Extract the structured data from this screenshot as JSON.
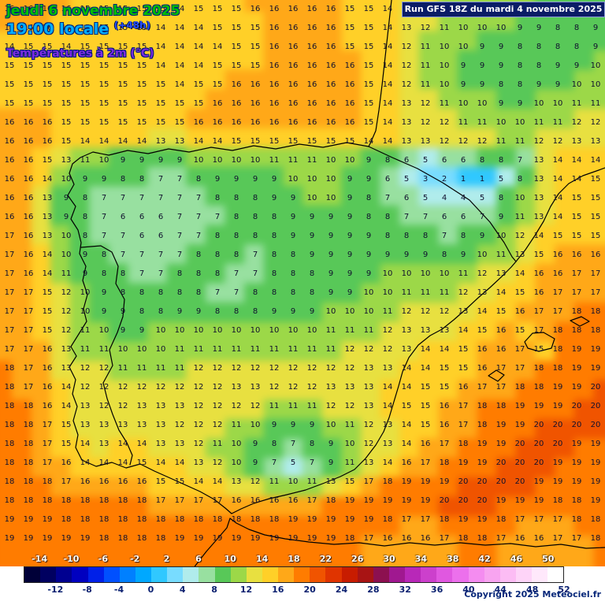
{
  "header": {
    "date_line": "jeudi 6 novembre 2025",
    "time_line": "19:00 locale",
    "offset": "(+48h)",
    "param_line": "Températures à 2m (°C)"
  },
  "banner": {
    "text": "Run GFS 18Z du mardi 4 novembre 2025"
  },
  "footer": {
    "copyright": "Copyright 2025 Meteociel.fr"
  },
  "colorbar": {
    "range": [
      -16,
      52
    ],
    "top_labels": [
      -14,
      -10,
      -6,
      -2,
      2,
      6,
      10,
      14,
      18,
      22,
      26,
      30,
      34,
      38,
      42,
      46,
      50
    ],
    "bottom_labels": [
      -12,
      -8,
      -4,
      0,
      4,
      8,
      12,
      16,
      20,
      24,
      28,
      32,
      36,
      40,
      44,
      48,
      52
    ],
    "stops": [
      {
        "max": -14,
        "color": "#000038"
      },
      {
        "max": -12,
        "color": "#000060"
      },
      {
        "max": -10,
        "color": "#000090"
      },
      {
        "max": -8,
        "color": "#0000C0"
      },
      {
        "max": -6,
        "color": "#0020E8"
      },
      {
        "max": -4,
        "color": "#0050FF"
      },
      {
        "max": -2,
        "color": "#0080FF"
      },
      {
        "max": 0,
        "color": "#00A8FF"
      },
      {
        "max": 2,
        "color": "#30C8FF"
      },
      {
        "max": 4,
        "color": "#78DCFF"
      },
      {
        "max": 6,
        "color": "#B0ECEC"
      },
      {
        "max": 8,
        "color": "#98E0A0"
      },
      {
        "max": 10,
        "color": "#58C858"
      },
      {
        "max": 12,
        "color": "#9CD848"
      },
      {
        "max": 14,
        "color": "#E8E040"
      },
      {
        "max": 16,
        "color": "#FFD028"
      },
      {
        "max": 18,
        "color": "#FFA818"
      },
      {
        "max": 20,
        "color": "#FF7C00"
      },
      {
        "max": 22,
        "color": "#F05400"
      },
      {
        "max": 24,
        "color": "#E03400"
      },
      {
        "max": 26,
        "color": "#C81C00"
      },
      {
        "max": 28,
        "color": "#A81414"
      },
      {
        "max": 30,
        "color": "#8C1050"
      },
      {
        "max": 32,
        "color": "#A01890"
      },
      {
        "max": 34,
        "color": "#B828B8"
      },
      {
        "max": 36,
        "color": "#CC40CC"
      },
      {
        "max": 38,
        "color": "#E058E0"
      },
      {
        "max": 40,
        "color": "#EC70EC"
      },
      {
        "max": 42,
        "color": "#F48CF0"
      },
      {
        "max": 44,
        "color": "#F8A4F0"
      },
      {
        "max": 46,
        "color": "#FCBCF4"
      },
      {
        "max": 48,
        "color": "#FED4F8"
      },
      {
        "max": 50,
        "color": "#FFE8FB"
      },
      {
        "max": 52,
        "color": "#FFFFFF"
      }
    ]
  },
  "grid": {
    "cols": 32,
    "rows": 30,
    "cell": 24,
    "values": [
      [
        16,
        16,
        16,
        16,
        15,
        15,
        15,
        15,
        15,
        14,
        15,
        15,
        15,
        16,
        16,
        16,
        16,
        16,
        15,
        15,
        14,
        13,
        12,
        11,
        11,
        10,
        10,
        10,
        9,
        9,
        8,
        9
      ],
      [
        16,
        16,
        16,
        15,
        15,
        15,
        15,
        15,
        14,
        14,
        14,
        15,
        15,
        15,
        16,
        16,
        16,
        16,
        15,
        15,
        14,
        13,
        12,
        11,
        10,
        10,
        10,
        9,
        9,
        8,
        8,
        9
      ],
      [
        14,
        15,
        15,
        14,
        15,
        15,
        15,
        15,
        14,
        14,
        14,
        14,
        15,
        15,
        16,
        16,
        16,
        16,
        15,
        15,
        14,
        12,
        11,
        10,
        10,
        9,
        9,
        8,
        8,
        8,
        8,
        9
      ],
      [
        15,
        15,
        15,
        15,
        15,
        15,
        15,
        15,
        14,
        14,
        14,
        15,
        15,
        15,
        16,
        16,
        16,
        16,
        16,
        15,
        14,
        12,
        11,
        10,
        9,
        9,
        9,
        8,
        8,
        9,
        9,
        10
      ],
      [
        15,
        15,
        15,
        15,
        15,
        15,
        15,
        15,
        15,
        14,
        15,
        15,
        16,
        16,
        16,
        16,
        16,
        16,
        16,
        15,
        14,
        12,
        11,
        10,
        9,
        9,
        8,
        8,
        9,
        9,
        10,
        10
      ],
      [
        15,
        15,
        15,
        15,
        15,
        15,
        15,
        15,
        15,
        15,
        15,
        16,
        16,
        16,
        16,
        16,
        16,
        16,
        16,
        15,
        14,
        13,
        12,
        11,
        10,
        10,
        9,
        9,
        10,
        10,
        11,
        11
      ],
      [
        16,
        16,
        16,
        15,
        15,
        15,
        15,
        15,
        15,
        15,
        16,
        16,
        16,
        16,
        16,
        16,
        16,
        16,
        16,
        15,
        14,
        13,
        12,
        12,
        11,
        11,
        10,
        10,
        11,
        11,
        12,
        12
      ],
      [
        16,
        16,
        16,
        15,
        14,
        14,
        14,
        14,
        13,
        13,
        14,
        14,
        15,
        15,
        15,
        15,
        15,
        15,
        15,
        14,
        14,
        13,
        13,
        12,
        12,
        12,
        11,
        11,
        12,
        12,
        13,
        13
      ],
      [
        16,
        16,
        15,
        13,
        11,
        10,
        9,
        9,
        9,
        9,
        10,
        10,
        10,
        10,
        11,
        11,
        11,
        10,
        10,
        9,
        8,
        6,
        5,
        6,
        6,
        8,
        8,
        7,
        13,
        14,
        14,
        14
      ],
      [
        16,
        16,
        14,
        10,
        9,
        9,
        8,
        8,
        7,
        7,
        8,
        9,
        9,
        9,
        9,
        10,
        10,
        10,
        9,
        9,
        6,
        5,
        3,
        2,
        1,
        1,
        5,
        8,
        13,
        14,
        14,
        15
      ],
      [
        16,
        16,
        13,
        9,
        8,
        7,
        7,
        7,
        7,
        7,
        7,
        8,
        8,
        8,
        9,
        9,
        10,
        10,
        9,
        8,
        7,
        6,
        5,
        4,
        4,
        5,
        8,
        10,
        13,
        14,
        15,
        15
      ],
      [
        16,
        16,
        13,
        9,
        8,
        7,
        6,
        6,
        6,
        7,
        7,
        7,
        8,
        8,
        8,
        9,
        9,
        9,
        9,
        8,
        8,
        7,
        7,
        6,
        6,
        7,
        9,
        11,
        13,
        14,
        15,
        15
      ],
      [
        17,
        16,
        13,
        10,
        8,
        7,
        7,
        6,
        6,
        7,
        7,
        8,
        8,
        8,
        8,
        9,
        9,
        9,
        9,
        9,
        8,
        8,
        8,
        7,
        8,
        9,
        10,
        12,
        14,
        15,
        15,
        15
      ],
      [
        17,
        16,
        14,
        10,
        9,
        8,
        7,
        7,
        7,
        7,
        8,
        8,
        8,
        7,
        8,
        8,
        9,
        9,
        9,
        9,
        9,
        9,
        9,
        8,
        9,
        10,
        11,
        13,
        15,
        16,
        16,
        16
      ],
      [
        17,
        16,
        14,
        11,
        9,
        8,
        8,
        7,
        7,
        8,
        8,
        8,
        7,
        7,
        8,
        8,
        8,
        9,
        9,
        9,
        10,
        10,
        10,
        10,
        11,
        12,
        13,
        14,
        16,
        16,
        17,
        17
      ],
      [
        17,
        17,
        15,
        12,
        10,
        9,
        8,
        8,
        8,
        8,
        8,
        7,
        7,
        8,
        8,
        8,
        8,
        9,
        9,
        10,
        10,
        11,
        11,
        11,
        12,
        13,
        14,
        15,
        16,
        17,
        17,
        17
      ],
      [
        17,
        17,
        15,
        12,
        10,
        9,
        9,
        8,
        8,
        9,
        9,
        8,
        8,
        8,
        9,
        9,
        9,
        10,
        10,
        10,
        11,
        12,
        12,
        12,
        13,
        14,
        15,
        16,
        17,
        17,
        18,
        18
      ],
      [
        17,
        17,
        15,
        12,
        11,
        10,
        9,
        9,
        10,
        10,
        10,
        10,
        10,
        10,
        10,
        10,
        10,
        11,
        11,
        11,
        12,
        13,
        13,
        13,
        14,
        15,
        16,
        15,
        17,
        18,
        18,
        18
      ],
      [
        17,
        17,
        16,
        13,
        11,
        11,
        10,
        10,
        10,
        11,
        11,
        11,
        11,
        11,
        11,
        11,
        11,
        11,
        12,
        12,
        12,
        13,
        14,
        14,
        15,
        16,
        16,
        17,
        15,
        18,
        19,
        19
      ],
      [
        18,
        17,
        16,
        13,
        12,
        12,
        11,
        11,
        11,
        11,
        12,
        12,
        12,
        12,
        12,
        12,
        12,
        12,
        12,
        13,
        13,
        14,
        14,
        15,
        15,
        16,
        17,
        17,
        18,
        18,
        19,
        19
      ],
      [
        18,
        17,
        16,
        14,
        12,
        12,
        12,
        12,
        12,
        12,
        12,
        12,
        13,
        13,
        12,
        12,
        12,
        13,
        13,
        13,
        14,
        14,
        15,
        15,
        16,
        17,
        17,
        18,
        18,
        19,
        19,
        20
      ],
      [
        18,
        18,
        16,
        14,
        13,
        12,
        12,
        13,
        13,
        13,
        12,
        12,
        12,
        12,
        11,
        11,
        11,
        12,
        12,
        13,
        14,
        15,
        15,
        16,
        17,
        18,
        18,
        19,
        19,
        19,
        20,
        20
      ],
      [
        18,
        18,
        17,
        15,
        13,
        13,
        13,
        13,
        13,
        12,
        12,
        12,
        11,
        10,
        9,
        9,
        9,
        10,
        11,
        12,
        13,
        14,
        15,
        16,
        17,
        18,
        19,
        19,
        20,
        20,
        20,
        20
      ],
      [
        18,
        18,
        17,
        15,
        14,
        13,
        14,
        14,
        13,
        13,
        12,
        11,
        10,
        9,
        8,
        7,
        8,
        9,
        10,
        12,
        13,
        14,
        16,
        17,
        18,
        19,
        19,
        20,
        20,
        20,
        19,
        19
      ],
      [
        18,
        18,
        17,
        16,
        14,
        14,
        14,
        15,
        14,
        14,
        13,
        12,
        10,
        9,
        7,
        5,
        7,
        9,
        11,
        13,
        14,
        16,
        17,
        18,
        19,
        19,
        20,
        20,
        20,
        19,
        19,
        19
      ],
      [
        18,
        18,
        18,
        17,
        16,
        16,
        16,
        16,
        15,
        15,
        14,
        14,
        13,
        12,
        11,
        10,
        11,
        13,
        15,
        17,
        18,
        19,
        19,
        19,
        20,
        20,
        20,
        20,
        19,
        19,
        19,
        19
      ],
      [
        18,
        18,
        18,
        18,
        18,
        18,
        18,
        18,
        17,
        17,
        17,
        17,
        16,
        16,
        16,
        16,
        17,
        18,
        19,
        19,
        19,
        19,
        19,
        20,
        20,
        20,
        19,
        19,
        19,
        18,
        18,
        19
      ],
      [
        19,
        19,
        19,
        18,
        18,
        18,
        18,
        18,
        18,
        18,
        18,
        18,
        18,
        18,
        18,
        19,
        19,
        19,
        19,
        19,
        18,
        17,
        17,
        18,
        19,
        19,
        18,
        17,
        17,
        17,
        18,
        18
      ],
      [
        19,
        19,
        19,
        19,
        19,
        18,
        18,
        18,
        18,
        19,
        19,
        19,
        19,
        19,
        19,
        19,
        19,
        19,
        18,
        17,
        16,
        16,
        16,
        17,
        18,
        18,
        17,
        16,
        16,
        17,
        17,
        18
      ],
      [
        19,
        19,
        19,
        19,
        19,
        18,
        18,
        18,
        18,
        19,
        19,
        19,
        19,
        19,
        19,
        19,
        19,
        18,
        18,
        17,
        16,
        16,
        17,
        17,
        18,
        18,
        17,
        16,
        16,
        17,
        17,
        18
      ]
    ]
  }
}
